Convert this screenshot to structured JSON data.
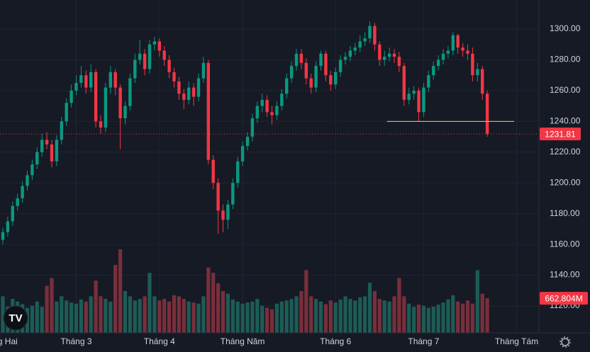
{
  "chart_data": {
    "type": "candlestick",
    "up_color": "#089981",
    "down_color": "#f23645",
    "volume_up_color": "#1d5c56",
    "volume_down_color": "#7a2e3b",
    "ylim": [
      1102.5,
      1318.9
    ],
    "yticks": [
      {
        "value": 1120,
        "label": "1120.00"
      },
      {
        "value": 1140,
        "label": "1140.00"
      },
      {
        "value": 1160,
        "label": "1160.00"
      },
      {
        "value": 1180,
        "label": "1180.00"
      },
      {
        "value": 1200,
        "label": "1200.00"
      },
      {
        "value": 1220,
        "label": "1220.00"
      },
      {
        "value": 1240,
        "label": "1240.00"
      },
      {
        "value": 1260,
        "label": "1260.00"
      },
      {
        "value": 1280,
        "label": "1280.00"
      },
      {
        "value": 1300,
        "label": "1300.00"
      }
    ],
    "xticks": [
      {
        "value": -1,
        "label": "Tháng Hai"
      },
      {
        "value": 15,
        "label": "Tháng 3"
      },
      {
        "value": 32,
        "label": "Tháng 4"
      },
      {
        "value": 49,
        "label": "Tháng Năm"
      },
      {
        "value": 68,
        "label": "Tháng 6"
      },
      {
        "value": 86,
        "label": "Tháng 7"
      },
      {
        "value": 105,
        "label": "Tháng Tám"
      }
    ],
    "volume_lim": [
      0,
      6370
    ],
    "open": [
      1163,
      1168,
      1175,
      1185,
      1190,
      1198,
      1205,
      1212,
      1220,
      1228,
      1225,
      1214,
      1228,
      1240,
      1252,
      1260,
      1265,
      1270,
      1262,
      1272,
      1240,
      1236,
      1262,
      1272,
      1262,
      1242,
      1250,
      1268,
      1280,
      1284,
      1274,
      1290,
      1292,
      1286,
      1280,
      1272,
      1266,
      1258,
      1254,
      1262,
      1256,
      1268,
      1278,
      1215,
      1200,
      1182,
      1176,
      1186,
      1200,
      1214,
      1224,
      1230,
      1242,
      1250,
      1254,
      1246,
      1244,
      1250,
      1258,
      1268,
      1276,
      1284,
      1278,
      1268,
      1262,
      1276,
      1284,
      1270,
      1264,
      1272,
      1280,
      1282,
      1286,
      1288,
      1292,
      1294,
      1302,
      1290,
      1280,
      1282,
      1284,
      1282,
      1276,
      1254,
      1258,
      1260,
      1246,
      1262,
      1270,
      1276,
      1280,
      1284,
      1286,
      1296,
      1288,
      1286,
      1284,
      1270,
      1274,
      1258
    ],
    "high": [
      1171,
      1178,
      1188,
      1193,
      1201,
      1208,
      1215,
      1223,
      1232,
      1233,
      1228,
      1231,
      1243,
      1255,
      1264,
      1270,
      1276,
      1273,
      1277,
      1274,
      1244,
      1265,
      1276,
      1274,
      1264,
      1253,
      1271,
      1284,
      1293,
      1287,
      1293,
      1295,
      1294,
      1289,
      1283,
      1275,
      1269,
      1261,
      1266,
      1265,
      1271,
      1282,
      1280,
      1218,
      1203,
      1186,
      1189,
      1203,
      1217,
      1227,
      1233,
      1245,
      1253,
      1258,
      1257,
      1250,
      1253,
      1261,
      1271,
      1279,
      1287,
      1287,
      1281,
      1271,
      1279,
      1286,
      1286,
      1273,
      1275,
      1283,
      1285,
      1289,
      1291,
      1296,
      1298,
      1305,
      1304,
      1292,
      1286,
      1288,
      1287,
      1285,
      1278,
      1262,
      1263,
      1262,
      1265,
      1273,
      1279,
      1283,
      1287,
      1289,
      1298,
      1297,
      1291,
      1290,
      1288,
      1278,
      1276,
      1260
    ],
    "low": [
      1160,
      1165,
      1172,
      1182,
      1187,
      1195,
      1202,
      1209,
      1217,
      1222,
      1210,
      1211,
      1225,
      1237,
      1249,
      1257,
      1262,
      1258,
      1259,
      1236,
      1232,
      1233,
      1258,
      1257,
      1222,
      1238,
      1247,
      1265,
      1277,
      1270,
      1271,
      1286,
      1282,
      1276,
      1268,
      1262,
      1254,
      1248,
      1251,
      1250,
      1253,
      1265,
      1212,
      1196,
      1167,
      1168,
      1170,
      1183,
      1197,
      1211,
      1221,
      1227,
      1239,
      1246,
      1243,
      1238,
      1241,
      1247,
      1255,
      1265,
      1273,
      1274,
      1264,
      1258,
      1259,
      1273,
      1266,
      1260,
      1261,
      1269,
      1277,
      1279,
      1283,
      1285,
      1289,
      1291,
      1286,
      1276,
      1276,
      1279,
      1278,
      1272,
      1250,
      1251,
      1254,
      1240,
      1243,
      1259,
      1267,
      1273,
      1277,
      1281,
      1283,
      1284,
      1282,
      1280,
      1266,
      1266,
      1254,
      1230
    ],
    "close": [
      1168,
      1175,
      1185,
      1190,
      1198,
      1205,
      1212,
      1220,
      1228,
      1225,
      1214,
      1228,
      1240,
      1252,
      1260,
      1265,
      1270,
      1262,
      1272,
      1240,
      1236,
      1262,
      1272,
      1262,
      1242,
      1250,
      1268,
      1280,
      1284,
      1274,
      1290,
      1292,
      1286,
      1280,
      1272,
      1266,
      1258,
      1254,
      1262,
      1256,
      1268,
      1278,
      1215,
      1200,
      1182,
      1176,
      1186,
      1200,
      1214,
      1224,
      1230,
      1242,
      1250,
      1254,
      1246,
      1244,
      1250,
      1258,
      1268,
      1276,
      1284,
      1278,
      1268,
      1262,
      1276,
      1284,
      1270,
      1264,
      1272,
      1280,
      1282,
      1286,
      1288,
      1292,
      1294,
      1302,
      1290,
      1280,
      1282,
      1284,
      1282,
      1276,
      1254,
      1258,
      1260,
      1246,
      1262,
      1270,
      1276,
      1280,
      1284,
      1286,
      1296,
      1288,
      1286,
      1284,
      1270,
      1274,
      1258,
      1231.81
    ],
    "volume": [
      700,
      500,
      650,
      600,
      550,
      480,
      520,
      600,
      500,
      900,
      1050,
      600,
      700,
      620,
      580,
      560,
      640,
      600,
      700,
      1000,
      700,
      650,
      600,
      1300,
      1600,
      800,
      700,
      620,
      650,
      700,
      1150,
      700,
      620,
      650,
      600,
      720,
      700,
      650,
      600,
      580,
      560,
      700,
      1250,
      1150,
      950,
      800,
      750,
      640,
      600,
      560,
      580,
      600,
      650,
      520,
      480,
      450,
      560,
      600,
      620,
      650,
      700,
      800,
      1200,
      700,
      650,
      600,
      550,
      620,
      580,
      640,
      700,
      650,
      620,
      680,
      700,
      960,
      800,
      650,
      620,
      600,
      700,
      1050,
      700,
      560,
      500,
      540,
      520,
      480,
      500,
      540,
      580,
      640,
      720,
      600,
      560,
      620,
      560,
      1200,
      750,
      662.804
    ],
    "volume_last_label": "662.804M",
    "level_line": {
      "value": 1240,
      "color": "#f5d742"
    }
  }
}
